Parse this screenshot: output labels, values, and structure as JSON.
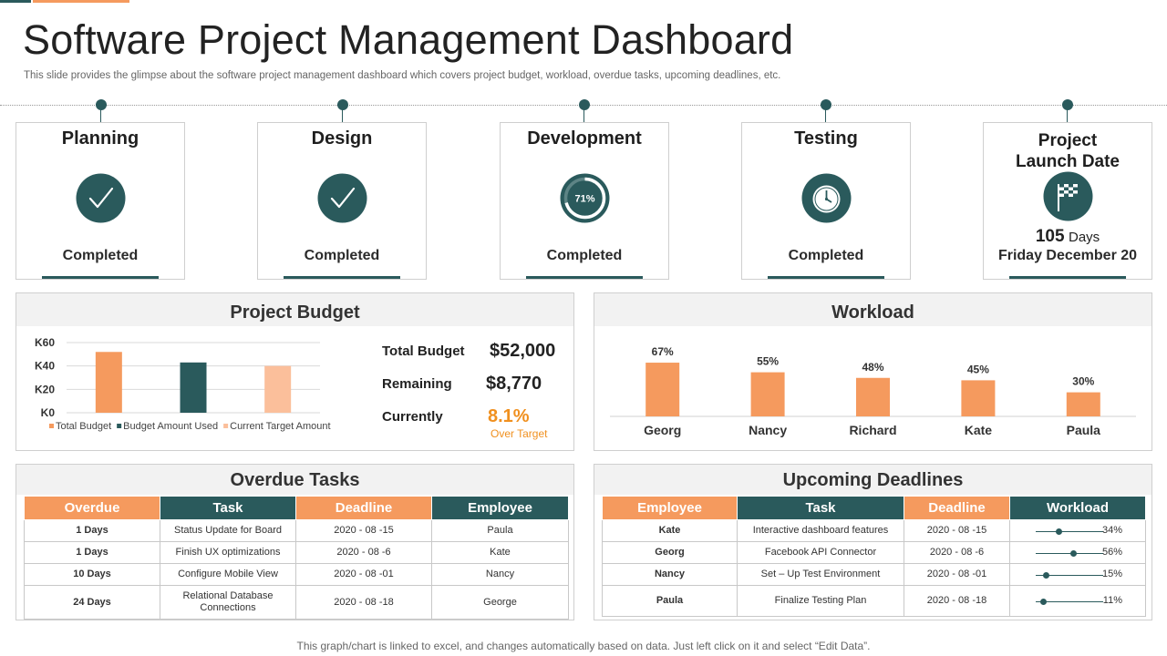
{
  "title": "Software Project Management Dashboard",
  "subtitle": "This slide provides the glimpse about the software project management dashboard which covers project budget, workload, overdue tasks, upcoming deadlines, etc.",
  "colors": {
    "teal": "#2a5a5c",
    "orange": "#f59a5e",
    "light_orange": "#fbbf9b"
  },
  "stages": [
    {
      "title": "Planning",
      "status": "Completed",
      "icon": "checkmark-icon"
    },
    {
      "title": "Design",
      "status": "Completed",
      "icon": "checkmark-icon"
    },
    {
      "title": "Development",
      "status": "Completed",
      "icon": "progress-ring-icon",
      "progress_label": "71%",
      "progress": 0.71
    },
    {
      "title": "Testing",
      "status": "Completed",
      "icon": "stopwatch-icon"
    },
    {
      "title_line1": "Project",
      "title_line2": "Launch Date",
      "days_num": "105",
      "days_unit": "Days",
      "date": "Friday December 20",
      "icon": "checkered-flag-icon"
    }
  ],
  "budget": {
    "heading": "Project Budget",
    "total_label": "Total Budget",
    "total_value": "$52,000",
    "remaining_label": "Remaining",
    "remaining_value": "$8,770",
    "currently_label": "Currently",
    "currently_value": "8.1%",
    "currently_note": "Over Target"
  },
  "workload": {
    "heading": "Workload"
  },
  "overdue": {
    "heading": "Overdue Tasks",
    "columns": [
      "Overdue",
      "Task",
      "Deadline",
      "Employee"
    ],
    "rows": [
      [
        "1 Days",
        "Status Update  for Board",
        "2020 - 08 -15",
        "Paula"
      ],
      [
        "1 Days",
        "Finish UX optimizations",
        "2020 - 08 -6",
        "Kate"
      ],
      [
        "10 Days",
        "Configure Mobile  View",
        "2020 - 08 -01",
        "Nancy"
      ],
      [
        "24 Days",
        "Relational Database Connections",
        "2020 - 08 -18",
        "George"
      ]
    ]
  },
  "deadlines": {
    "heading": "Upcoming Deadlines",
    "columns": [
      "Employee",
      "Task",
      "Deadline",
      "Workload"
    ],
    "rows": [
      {
        "employee": "Kate",
        "task": "Interactive dashboard features",
        "deadline": "2020 - 08 -15",
        "workload_label": "34%",
        "workload": 0.34
      },
      {
        "employee": "Georg",
        "task": "Facebook API Connector",
        "deadline": "2020 - 08 -6",
        "workload_label": "56%",
        "workload": 0.56
      },
      {
        "employee": "Nancy",
        "task": "Set – Up Test Environment",
        "deadline": "2020 - 08 -01",
        "workload_label": "15%",
        "workload": 0.15
      },
      {
        "employee": "Paula",
        "task": "Finalize Testing Plan",
        "deadline": "2020 - 08 -18",
        "workload_label": "11%",
        "workload": 0.11
      }
    ]
  },
  "footer": "This graph/chart is linked to excel,  and changes automatically based on data. Just left click on it and select “Edit Data”.",
  "chart_data": [
    {
      "type": "bar",
      "categories": [
        ""
      ],
      "series": [
        {
          "name": "Total Budget",
          "values": [
            52
          ],
          "color": "#f59a5e"
        },
        {
          "name": "Budget Amount Used",
          "values": [
            43
          ],
          "color": "#2a5a5c"
        },
        {
          "name": "Current Target Amount",
          "values": [
            40
          ],
          "color": "#fbbf9b"
        }
      ],
      "ylim": [
        0,
        60
      ],
      "yticks": [
        "K0",
        "K20",
        "K40",
        "K60"
      ],
      "ytick_values": [
        0,
        20,
        40,
        60
      ],
      "legend": "bottom",
      "grid": true
    },
    {
      "type": "bar",
      "categories": [
        "Georg",
        "Nancy",
        "Richard",
        "Kate",
        "Paula"
      ],
      "values": [
        67,
        55,
        48,
        45,
        30
      ],
      "labels": [
        "67%",
        "55%",
        "48%",
        "45%",
        "30%"
      ],
      "ylim": [
        0,
        100
      ],
      "legend": "none",
      "grid": false
    }
  ]
}
